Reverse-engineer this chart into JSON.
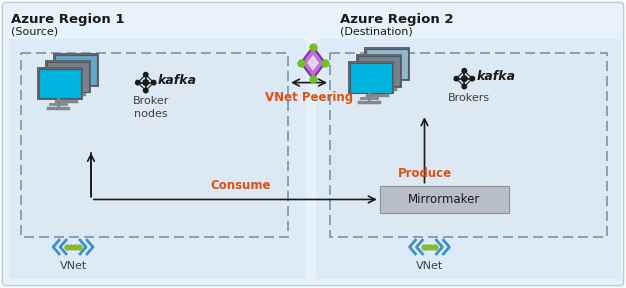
{
  "fig_width": 6.26,
  "fig_height": 2.88,
  "dpi": 100,
  "outer_bg": "#ffffff",
  "region_bg": "#ddeaf7",
  "dashed_box_bg": "#e8eef5",
  "mirrormaker_bg": "#b8bec8",
  "region1_title": "Azure Region 1",
  "region1_subtitle": "(Source)",
  "region2_title": "Azure Region 2",
  "region2_subtitle": "(Destination)",
  "vnet_peering_label": "VNet Peering",
  "consume_label": "Consume",
  "produce_label": "Produce",
  "broker_nodes_label": "Broker\nnodes",
  "brokers_label": "Brokers",
  "mirrormaker_label": "Mirrormaker",
  "vnet_label": "VNet",
  "kafka_label": "kafka",
  "orange_color": "#e05010",
  "black_color": "#1a1a1a",
  "title_color": "#1a1a1a",
  "dark_gray": "#404040",
  "monitor_blue_bright": "#00b4e0",
  "monitor_blue_mid": "#60a8c8",
  "monitor_blue_light": "#90b8cc",
  "monitor_gray_dark": "#606870",
  "monitor_gray_mid": "#788090",
  "monitor_stand": "#808890",
  "vnet_arrow_color": "#4090c8",
  "vnet_dot_color": "#88b830",
  "diamond_purple": "#8030a0",
  "diamond_fill": "#9040b0",
  "diamond_green": "#70c020"
}
